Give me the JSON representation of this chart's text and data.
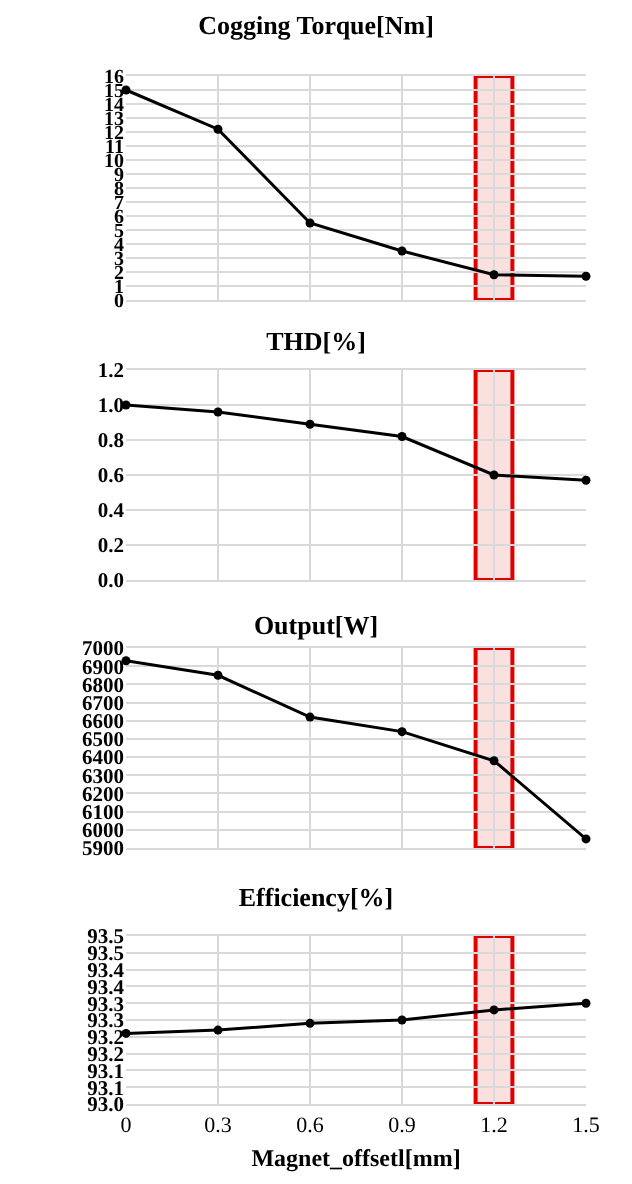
{
  "chart_data": [
    {
      "type": "line",
      "title": "Cogging Torque[Nm]",
      "x": [
        0,
        0.3,
        0.6,
        0.9,
        1.2,
        1.5
      ],
      "color": "#000000",
      "marker": "circle",
      "grid": true,
      "tick_labels": "y",
      "xlim": [
        0,
        1.5
      ],
      "xticks": [
        0,
        0.3,
        0.6,
        0.9,
        1.2,
        1.5
      ],
      "ylim": [
        0,
        16
      ],
      "yticks": [
        0,
        1,
        2,
        3,
        4,
        5,
        6,
        7,
        8,
        9,
        10,
        11,
        12,
        13,
        14,
        15,
        16
      ],
      "values": [
        15.0,
        12.2,
        5.5,
        3.5,
        1.8,
        1.7
      ],
      "bands": [
        {
          "axis": "x",
          "from": 1.14,
          "to": 1.26,
          "color": "#e00000"
        }
      ]
    },
    {
      "type": "line",
      "title": "THD[%]",
      "x": [
        0,
        0.3,
        0.6,
        0.9,
        1.2,
        1.5
      ],
      "color": "#000000",
      "marker": "circle",
      "grid": true,
      "tick_labels": "y",
      "xlim": [
        0,
        1.5
      ],
      "xticks": [
        0,
        0.3,
        0.6,
        0.9,
        1.2,
        1.5
      ],
      "ylim": [
        0,
        1.2
      ],
      "yticks": [
        {
          "value": 0,
          "label": "0.0"
        },
        {
          "value": 0.2,
          "label": "0.2"
        },
        {
          "value": 0.4,
          "label": "0.4"
        },
        {
          "value": 0.6,
          "label": "0.6"
        },
        {
          "value": 0.8,
          "label": "0.8"
        },
        {
          "value": 1,
          "label": "1.0"
        },
        {
          "value": 1.2,
          "label": "1.2"
        }
      ],
      "values": [
        1.0,
        0.96,
        0.89,
        0.82,
        0.6,
        0.57
      ],
      "bands": [
        {
          "axis": "x",
          "from": 1.14,
          "to": 1.26,
          "color": "#e00000"
        }
      ]
    },
    {
      "type": "line",
      "title": "Output[W]",
      "x": [
        0,
        0.3,
        0.6,
        0.9,
        1.2,
        1.5
      ],
      "color": "#000000",
      "marker": "circle",
      "grid": true,
      "tick_labels": "y",
      "xlim": [
        0,
        1.5
      ],
      "xticks": [
        0,
        0.3,
        0.6,
        0.9,
        1.2,
        1.5
      ],
      "ylim": [
        5900,
        7000
      ],
      "yticks": [
        5900,
        6000,
        6100,
        6200,
        6300,
        6400,
        6500,
        6600,
        6700,
        6800,
        6900,
        7000
      ],
      "values": [
        6930,
        6850,
        6620,
        6540,
        6380,
        5950
      ],
      "bands": [
        {
          "axis": "x",
          "from": 1.14,
          "to": 1.26,
          "color": "#e00000"
        }
      ]
    },
    {
      "type": "line",
      "title": "Efficiency[%]",
      "xlabel": "Magnet_offsetl[mm]",
      "x": [
        0,
        0.3,
        0.6,
        0.9,
        1.2,
        1.5
      ],
      "color": "#000000",
      "marker": "circle",
      "grid": true,
      "xlim": [
        0,
        1.5
      ],
      "xticks": [
        0,
        0.3,
        0.6,
        0.9,
        1.2,
        1.5
      ],
      "ylim": [
        93.0,
        93.5
      ],
      "yticks": [
        {
          "value": 93.0,
          "label": "93.0"
        },
        {
          "value": 93.05,
          "label": "93.1"
        },
        {
          "value": 93.1,
          "label": "93.1"
        },
        {
          "value": 93.15,
          "label": "93.2"
        },
        {
          "value": 93.2,
          "label": "93.2"
        },
        {
          "value": 93.25,
          "label": "93.3"
        },
        {
          "value": 93.3,
          "label": "93.3"
        },
        {
          "value": 93.35,
          "label": "93.4"
        },
        {
          "value": 93.4,
          "label": "93.4"
        },
        {
          "value": 93.45,
          "label": "93.5"
        },
        {
          "value": 93.5,
          "label": "93.5"
        }
      ],
      "values": [
        93.21,
        93.22,
        93.24,
        93.25,
        93.28,
        93.3
      ],
      "bands": [
        {
          "axis": "x",
          "from": 1.14,
          "to": 1.26,
          "color": "#e00000"
        }
      ]
    }
  ]
}
